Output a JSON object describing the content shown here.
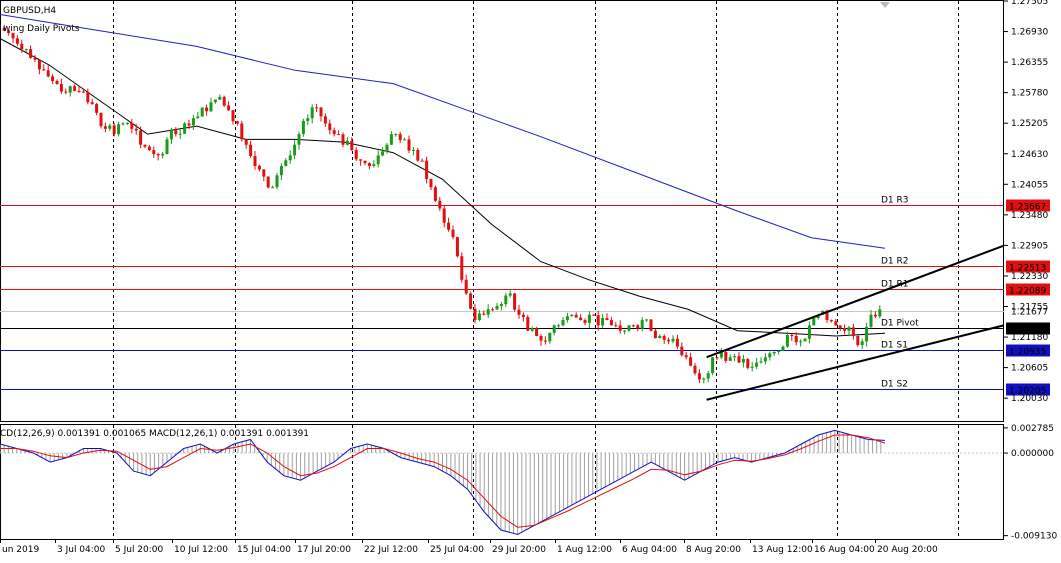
{
  "symbol_label": "GBPUSD,H4",
  "indicator_label": "wing Daily Pivots",
  "macd_label": "CD(12,26,9) 0.001391 0.001065 MACD(12,26,1) 0.001391 0.001391",
  "colors": {
    "bull": "#1a9a1a",
    "bear": "#e01010",
    "ma_fast": "#000000",
    "ma_slow": "#2020c0",
    "pivot_red": "#e01010",
    "pivot_blue": "#1010c0",
    "pivot_black": "#000000",
    "macd_signal": "#e01010",
    "macd_main": "#1010c0",
    "histogram": "#a0a0a0",
    "grid": "#000000"
  },
  "chart_data": [
    {
      "type": "candlestick",
      "title": "GBPUSD,H4",
      "ylim": [
        1.196,
        1.27505
      ],
      "y_ticks": [
        "1.27505",
        "1.26930",
        "1.26355",
        "1.25780",
        "1.25205",
        "1.24630",
        "1.24055",
        "1.23480",
        "1.22905",
        "1.22330",
        "1.21755",
        "1.21180",
        "1.20605",
        "1.20030"
      ],
      "x_ticks": [
        "un 2019",
        "3 Jul 04:00",
        "5 Jul 20:00",
        "10 Jul 12:00",
        "15 Jul 04:00",
        "17 Jul 20:00",
        "22 Jul 12:00",
        "25 Jul 04:00",
        "29 Jul 20:00",
        "1 Aug 12:00",
        "6 Aug 04:00",
        "8 Aug 20:00",
        "13 Aug 12:00",
        "16 Aug 04:00",
        "20 Aug 20:00"
      ],
      "pivot_levels": [
        {
          "name": "D1 R3",
          "value": 1.23667,
          "label": "1.23667",
          "color": "red"
        },
        {
          "name": "D1 R2",
          "value": 1.22513,
          "label": "1.22513",
          "color": "red"
        },
        {
          "name": "D1 R1",
          "value": 1.22089,
          "label": "1.22089",
          "color": "red"
        },
        {
          "name": "D1 Pivot",
          "value": 1.21359,
          "label": "1.21359",
          "color": "black"
        },
        {
          "name": "D1 S1",
          "value": 1.20935,
          "label": "1.20935",
          "color": "blue"
        },
        {
          "name": "D1 S2",
          "value": 1.20205,
          "label": "1.20205",
          "color": "blue"
        }
      ],
      "current_price_label": "1.21677",
      "close_path": [
        1.269,
        1.267,
        1.266,
        1.264,
        1.262,
        1.26,
        1.258,
        1.259,
        1.258,
        1.256,
        1.254,
        1.251,
        1.25,
        1.252,
        1.251,
        1.248,
        1.247,
        1.246,
        1.249,
        1.25,
        1.252,
        1.253,
        1.255,
        1.256,
        1.257,
        1.2545,
        1.252,
        1.248,
        1.244,
        1.242,
        1.24,
        1.244,
        1.246,
        1.25,
        1.253,
        1.255,
        1.252,
        1.25,
        1.248,
        1.247,
        1.245,
        1.244,
        1.246,
        1.248,
        1.25,
        1.249,
        1.247,
        1.245,
        1.24,
        1.236,
        1.232,
        1.227,
        1.22,
        1.215,
        1.216,
        1.217,
        1.218,
        1.22,
        1.216,
        1.213,
        1.212,
        1.211,
        1.214,
        1.215,
        1.216,
        1.215,
        1.216,
        1.214,
        1.215,
        1.214,
        1.213,
        1.214,
        1.215,
        1.213,
        1.212,
        1.211,
        1.21,
        1.208,
        1.205,
        1.204,
        1.208,
        1.209,
        1.208,
        1.207,
        1.206,
        1.207,
        1.208,
        1.209,
        1.21,
        1.212,
        1.211,
        1.214,
        1.216,
        1.215,
        1.214,
        1.213,
        1.212,
        1.211,
        1.216,
        1.217
      ],
      "ma_fast": [
        {
          "x": 0,
          "y": 1.268
        },
        {
          "x": 10,
          "y": 1.263
        },
        {
          "x": 20,
          "y": 1.2565
        },
        {
          "x": 30,
          "y": 1.25
        },
        {
          "x": 40,
          "y": 1.2515
        },
        {
          "x": 50,
          "y": 1.249
        },
        {
          "x": 60,
          "y": 1.249
        },
        {
          "x": 70,
          "y": 1.2485
        },
        {
          "x": 80,
          "y": 1.2465
        },
        {
          "x": 90,
          "y": 1.2415
        },
        {
          "x": 100,
          "y": 1.233
        },
        {
          "x": 110,
          "y": 1.226
        },
        {
          "x": 120,
          "y": 1.2225
        },
        {
          "x": 130,
          "y": 1.2195
        },
        {
          "x": 140,
          "y": 1.217
        },
        {
          "x": 150,
          "y": 1.213
        },
        {
          "x": 160,
          "y": 1.2125
        },
        {
          "x": 170,
          "y": 1.212
        },
        {
          "x": 180,
          "y": 1.2125
        }
      ],
      "ma_slow": [
        {
          "x": 0,
          "y": 1.2725
        },
        {
          "x": 20,
          "y": 1.2695
        },
        {
          "x": 40,
          "y": 1.2665
        },
        {
          "x": 60,
          "y": 1.262
        },
        {
          "x": 80,
          "y": 1.2595
        },
        {
          "x": 95,
          "y": 1.2545
        },
        {
          "x": 110,
          "y": 1.2495
        },
        {
          "x": 130,
          "y": 1.2425
        },
        {
          "x": 150,
          "y": 1.2355
        },
        {
          "x": 165,
          "y": 1.2305
        },
        {
          "x": 180,
          "y": 1.2285
        }
      ],
      "trendlines": [
        {
          "x0": 0.666,
          "y0": 1.2,
          "x1": 0.946,
          "y1": 1.214
        },
        {
          "x0": 0.666,
          "y0": 1.208,
          "x1": 0.946,
          "y1": 1.229
        }
      ]
    },
    {
      "type": "macd",
      "title": "CD(12,26,9) 0.001391 0.001065 MACD(12,26,1) 0.001391 0.001391",
      "ylim": [
        -0.0095,
        0.0031
      ],
      "y_ticks": [
        "0.002785",
        "0.000000",
        "-0.009130"
      ],
      "main": [
        0.001,
        0.0005,
        0.0,
        -0.001,
        -0.0005,
        0.0005,
        0.0005,
        0.0,
        -0.002,
        -0.0025,
        -0.001,
        0.0005,
        0.001,
        0.0,
        0.001,
        0.0015,
        -0.001,
        -0.0025,
        -0.003,
        -0.002,
        -0.001,
        0.0005,
        0.001,
        0.0005,
        -0.0005,
        -0.001,
        -0.0015,
        -0.0025,
        -0.004,
        -0.0065,
        -0.0085,
        -0.009,
        -0.008,
        -0.007,
        -0.006,
        -0.005,
        -0.004,
        -0.003,
        -0.002,
        -0.001,
        -0.002,
        -0.003,
        -0.002,
        -0.001,
        -0.0005,
        -0.001,
        -0.0005,
        0.0,
        0.001,
        0.002,
        0.0025,
        0.002,
        0.0015,
        0.0014
      ],
      "signal": [
        0.0005,
        0.0005,
        0.0002,
        -0.0003,
        -0.0005,
        0.0,
        0.0003,
        0.0002,
        -0.0008,
        -0.0018,
        -0.0015,
        -0.0005,
        0.0005,
        0.0003,
        0.0006,
        0.001,
        0.0,
        -0.0015,
        -0.0025,
        -0.0022,
        -0.0015,
        -0.0005,
        0.0005,
        0.0005,
        0.0,
        -0.0006,
        -0.001,
        -0.0018,
        -0.003,
        -0.005,
        -0.007,
        -0.0082,
        -0.008,
        -0.0072,
        -0.0064,
        -0.0055,
        -0.0046,
        -0.0037,
        -0.0028,
        -0.0018,
        -0.0019,
        -0.0024,
        -0.002,
        -0.0013,
        -0.0008,
        -0.0009,
        -0.0006,
        -0.0002,
        0.0005,
        0.0013,
        0.002,
        0.002,
        0.0017,
        0.0011
      ]
    }
  ]
}
